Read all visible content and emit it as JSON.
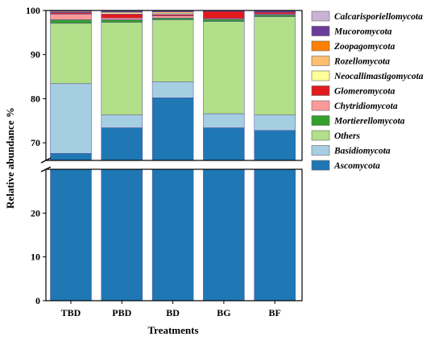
{
  "chart_data": {
    "type": "bar",
    "stacked": true,
    "broken_y_axis": true,
    "title": "",
    "xlabel": "Treatments",
    "ylabel": "Relative abundance %",
    "categories": [
      "TBD",
      "PBD",
      "BD",
      "BG",
      "BF"
    ],
    "y_upper_range": [
      66,
      100
    ],
    "y_lower_range": [
      0,
      30
    ],
    "y_ticks_upper": [
      70,
      80,
      90,
      100
    ],
    "y_ticks_lower": [
      0,
      10,
      20
    ],
    "legend_position": "right",
    "series": [
      {
        "name": "Ascomycota",
        "color": "#1f78b4",
        "values": [
          67.6,
          73.4,
          80.2,
          73.4,
          72.8
        ]
      },
      {
        "name": "Basidiomycota",
        "color": "#a6cee3",
        "values": [
          15.8,
          2.9,
          3.6,
          3.2,
          3.5
        ]
      },
      {
        "name": "Others",
        "color": "#b2df8a",
        "values": [
          13.7,
          21.0,
          14.1,
          20.9,
          22.3
        ]
      },
      {
        "name": "Mortierellomycota",
        "color": "#33a02c",
        "values": [
          0.8,
          0.6,
          0.4,
          0.5,
          0.4
        ]
      },
      {
        "name": "Chytridiomycota",
        "color": "#fb9a99",
        "values": [
          1.3,
          0.4,
          0.5,
          0.2,
          0.2
        ]
      },
      {
        "name": "Glomeromycota",
        "color": "#e31a1c",
        "values": [
          0.3,
          0.9,
          0.3,
          1.6,
          0.4
        ]
      },
      {
        "name": "Neocallimastigomycota",
        "color": "#ffff99",
        "values": [
          0.1,
          0.3,
          0.3,
          0.05,
          0.05
        ]
      },
      {
        "name": "Rozellomycota",
        "color": "#fdbf6f",
        "values": [
          0.2,
          0.2,
          0.3,
          0.05,
          0.05
        ]
      },
      {
        "name": "Zoopagomycota",
        "color": "#ff7f00",
        "values": [
          0.1,
          0.1,
          0.1,
          0.05,
          0.05
        ]
      },
      {
        "name": "Mucoromycota",
        "color": "#6a3d9a",
        "values": [
          0.05,
          0.1,
          0.1,
          0.05,
          0.2
        ]
      },
      {
        "name": "Calcarisporiellomycota",
        "color": "#cab2d6",
        "values": [
          0.05,
          0.1,
          0.1,
          0.05,
          0.05
        ]
      }
    ]
  }
}
